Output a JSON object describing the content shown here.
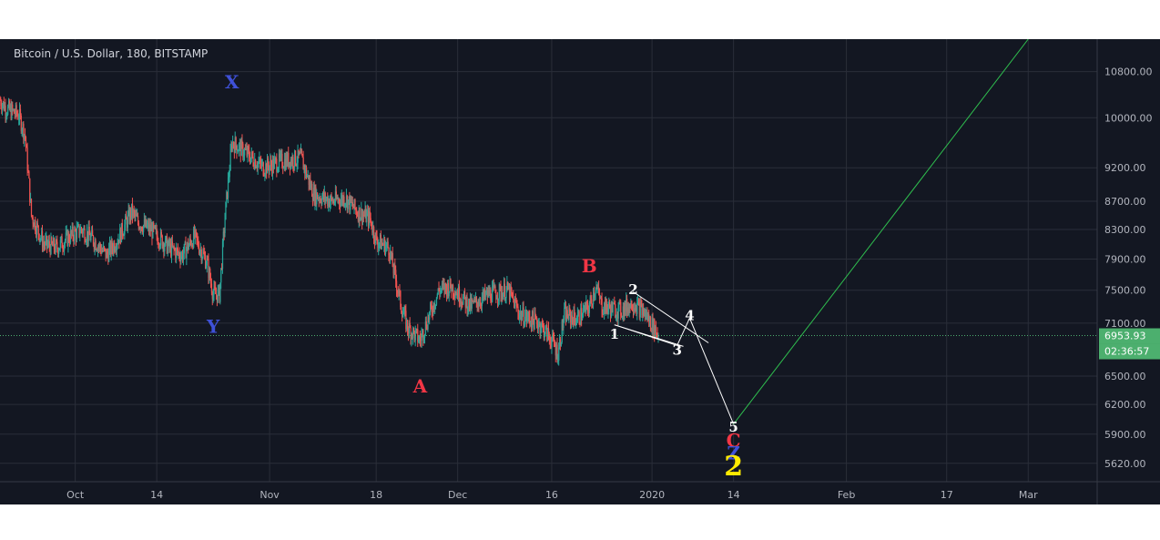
{
  "chart_title": "Bitcoin / U.S. Dollar, 180, BITSTAMP",
  "colors": {
    "background": "#131722",
    "up_candle": "#26a69a",
    "down_candle": "#ef5350",
    "wave_white": "#ffffff",
    "wave_red": "#f23645",
    "wave_blue": "#3f51d8",
    "wave_yellow": "#ffeb00",
    "projection_line": "#2fbf4f",
    "price_tag": "#4caf6e"
  },
  "chart_data": {
    "type": "candlestick",
    "symbol": "Bitcoin / U.S. Dollar",
    "interval": "180",
    "exchange": "BITSTAMP",
    "y_scale": "log",
    "ylim": [
      5450,
      11400
    ],
    "xlim": [
      "2019-09-19",
      "2020-03-12"
    ],
    "y_ticks": [
      "10800.00",
      "10000.00",
      "9200.00",
      "8700.00",
      "8300.00",
      "7900.00",
      "7500.00",
      "7100.00",
      "6500.00",
      "6200.00",
      "5900.00",
      "5620.00"
    ],
    "x_ticks": [
      "Oct",
      "14",
      "Nov",
      "18",
      "Dec",
      "16",
      "2020",
      "14",
      "Feb",
      "17",
      "Mar"
    ],
    "x_tick_dates": [
      "2019-10-01",
      "2019-10-14",
      "2019-11-01",
      "2019-11-18",
      "2019-12-01",
      "2019-12-16",
      "2020-01-01",
      "2020-01-14",
      "2020-02-01",
      "2020-02-17",
      "2020-03-01"
    ],
    "last_price": "6953.93",
    "countdown": "02:36:57",
    "price_path": [
      [
        "2019-09-19",
        10300
      ],
      [
        "2019-09-20",
        10150
      ],
      [
        "2019-09-22",
        10050
      ],
      [
        "2019-09-23",
        9700
      ],
      [
        "2019-09-24",
        8500
      ],
      [
        "2019-09-26",
        8100
      ],
      [
        "2019-09-28",
        8050
      ],
      [
        "2019-09-30",
        8200
      ],
      [
        "2019-10-02",
        8300
      ],
      [
        "2019-10-04",
        8150
      ],
      [
        "2019-10-06",
        7950
      ],
      [
        "2019-10-08",
        8200
      ],
      [
        "2019-10-10",
        8550
      ],
      [
        "2019-10-11",
        8400
      ],
      [
        "2019-10-13",
        8300
      ],
      [
        "2019-10-16",
        8050
      ],
      [
        "2019-10-18",
        7950
      ],
      [
        "2019-10-20",
        8200
      ],
      [
        "2019-10-22",
        7850
      ],
      [
        "2019-10-23",
        7450
      ],
      [
        "2019-10-24",
        7450
      ],
      [
        "2019-10-25",
        8600
      ],
      [
        "2019-10-26",
        9600
      ],
      [
        "2019-10-28",
        9450
      ],
      [
        "2019-10-31",
        9200
      ],
      [
        "2019-11-03",
        9300
      ],
      [
        "2019-11-06",
        9350
      ],
      [
        "2019-11-08",
        8800
      ],
      [
        "2019-11-11",
        8700
      ],
      [
        "2019-11-13",
        8750
      ],
      [
        "2019-11-15",
        8550
      ],
      [
        "2019-11-17",
        8450
      ],
      [
        "2019-11-18",
        8150
      ],
      [
        "2019-11-20",
        8050
      ],
      [
        "2019-11-22",
        7300
      ],
      [
        "2019-11-23",
        7050
      ],
      [
        "2019-11-25",
        6900
      ],
      [
        "2019-11-26",
        7100
      ],
      [
        "2019-11-28",
        7500
      ],
      [
        "2019-11-30",
        7550
      ],
      [
        "2019-12-03",
        7300
      ],
      [
        "2019-12-06",
        7450
      ],
      [
        "2019-12-09",
        7500
      ],
      [
        "2019-12-11",
        7200
      ],
      [
        "2019-12-14",
        7100
      ],
      [
        "2019-12-16",
        6900
      ],
      [
        "2019-12-17",
        6750
      ],
      [
        "2019-12-18",
        7200
      ],
      [
        "2019-12-20",
        7150
      ],
      [
        "2019-12-22",
        7300
      ],
      [
        "2019-12-23",
        7550
      ],
      [
        "2019-12-24",
        7300
      ],
      [
        "2019-12-27",
        7250
      ],
      [
        "2019-12-29",
        7350
      ],
      [
        "2019-12-31",
        7200
      ],
      [
        "2020-01-02",
        6960
      ]
    ],
    "annotations": [
      {
        "text": "X",
        "color": "blue",
        "date": "2019-10-26",
        "price": 10600
      },
      {
        "text": "Y",
        "color": "blue",
        "date": "2019-10-23",
        "price": 7050
      },
      {
        "text": "A",
        "color": "red",
        "date": "2019-11-25",
        "price": 6380
      },
      {
        "text": "B",
        "color": "red",
        "date": "2019-12-22",
        "price": 7800
      },
      {
        "text": "1",
        "color": "white",
        "date": "2019-12-26",
        "price": 6980
      },
      {
        "text": "2",
        "color": "white",
        "date": "2019-12-29",
        "price": 7520
      },
      {
        "text": "3",
        "color": "white",
        "date": "2020-01-05",
        "price": 6800
      },
      {
        "text": "4",
        "color": "white",
        "date": "2020-01-07",
        "price": 7200
      },
      {
        "text": "5",
        "color": "white",
        "date": "2020-01-14",
        "price": 5980
      },
      {
        "text": "C",
        "color": "red",
        "date": "2020-01-14",
        "price": 5830
      },
      {
        "text": "Z",
        "color": "blue",
        "date": "2020-01-14",
        "price": 5710
      },
      {
        "text": "2",
        "color": "yellow",
        "date": "2020-01-14",
        "price": 5560
      }
    ],
    "projection": [
      [
        "2019-12-26",
        7080
      ],
      [
        "2020-01-05",
        6840
      ],
      [
        "2020-01-07",
        7160
      ],
      [
        "2020-01-14",
        6000
      ],
      [
        "2020-03-01",
        11400
      ]
    ],
    "channel_lines": [
      [
        [
          "2019-12-26",
          7080
        ],
        [
          "2020-01-06",
          6830
        ]
      ],
      [
        [
          "2019-12-29",
          7480
        ],
        [
          "2020-01-10",
          6870
        ]
      ]
    ]
  }
}
